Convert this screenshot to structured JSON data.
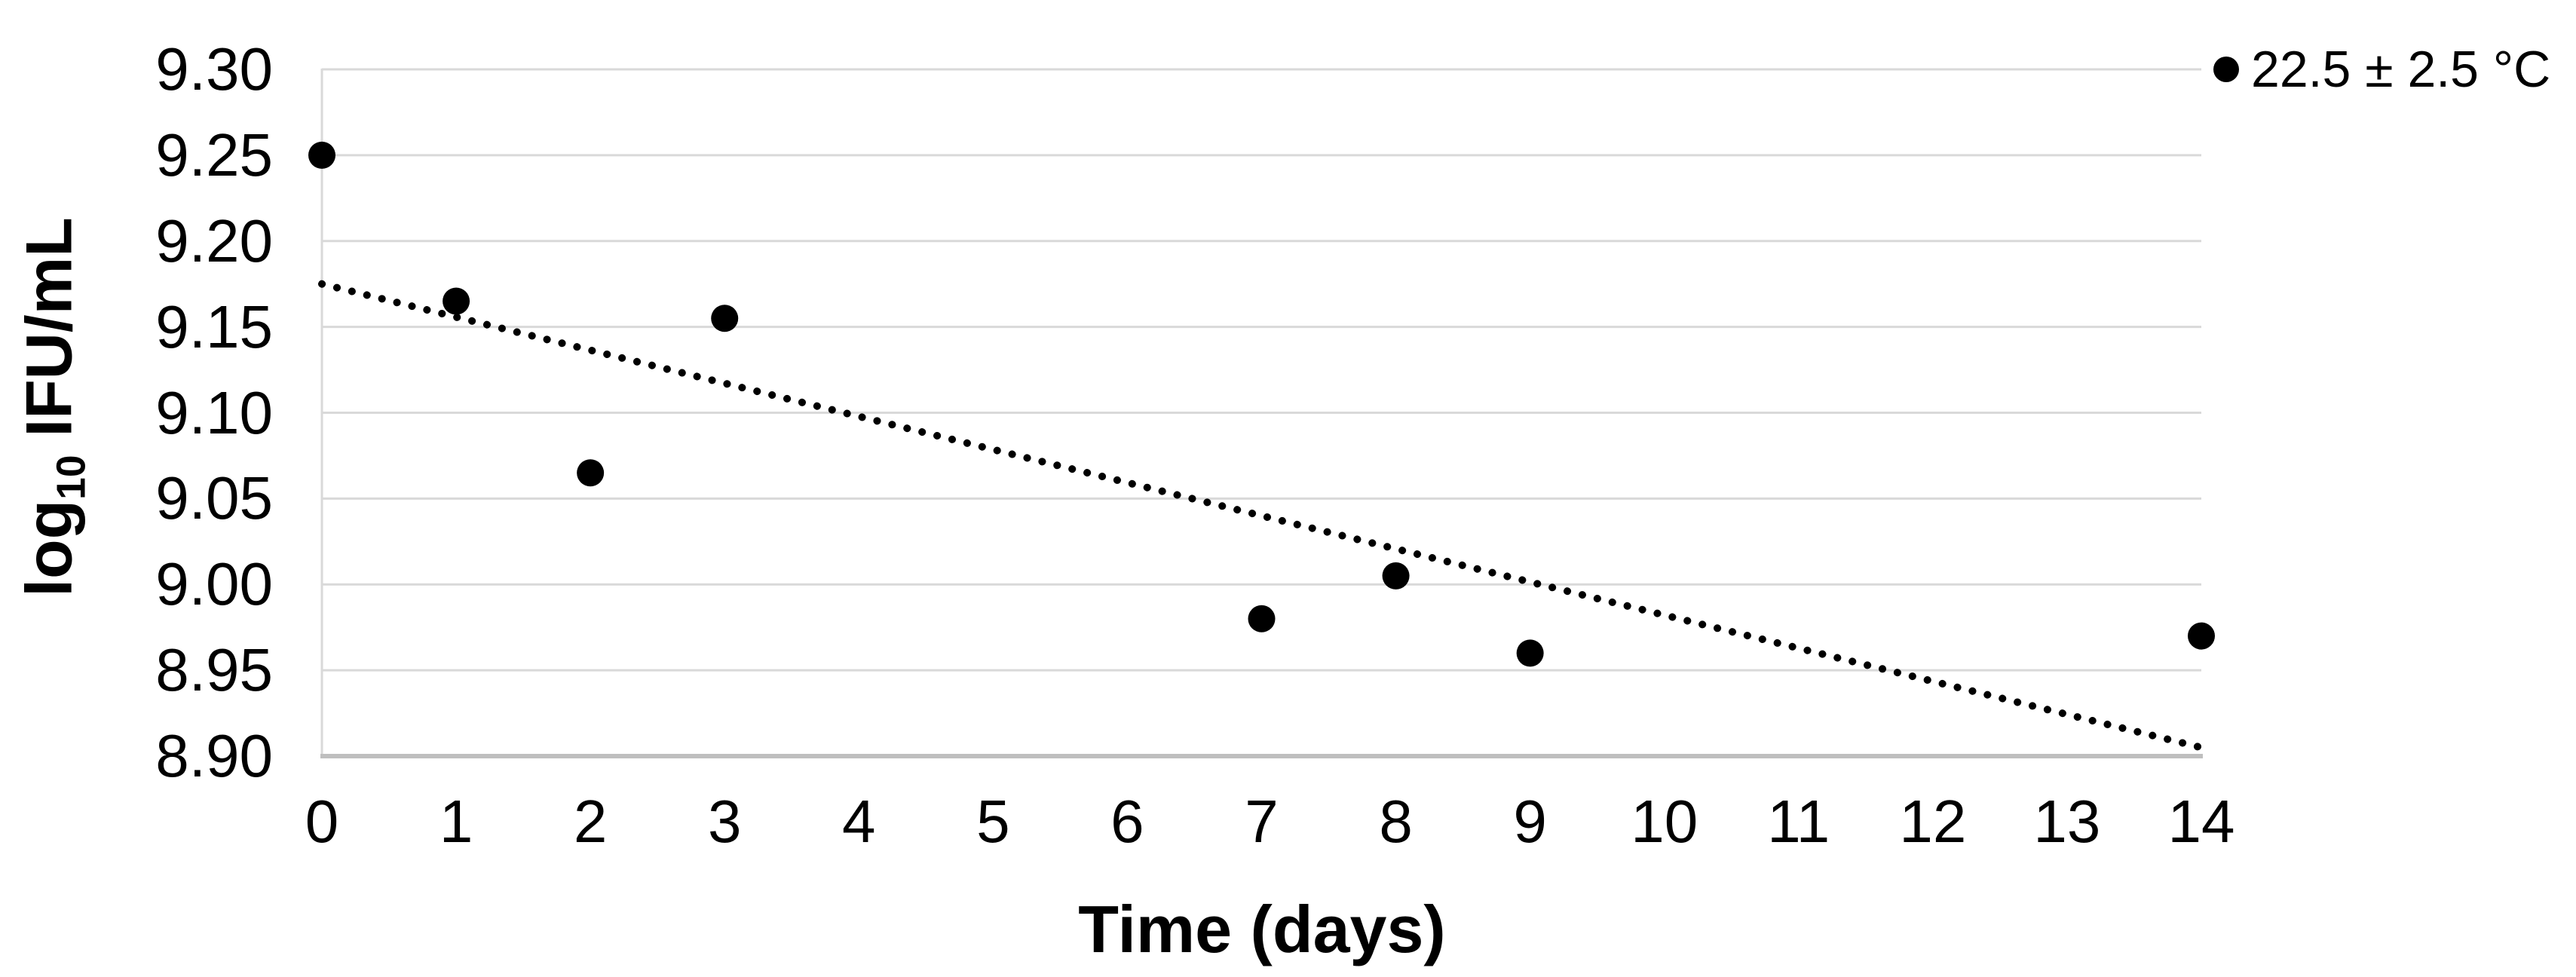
{
  "chart": {
    "legend": {
      "label": "22.5 ± 2.5 °C"
    },
    "x_axis": {
      "title": "Time (days)",
      "tick_labels": [
        "0",
        "1",
        "2",
        "3",
        "4",
        "5",
        "6",
        "7",
        "8",
        "9",
        "10",
        "11",
        "12",
        "13",
        "14"
      ]
    },
    "y_axis": {
      "title_prefix": "log",
      "title_subscript": "10",
      "title_suffix": " IFU/mL",
      "tick_labels": [
        "9.30",
        "9.25",
        "9.20",
        "9.15",
        "9.10",
        "9.05",
        "9.00",
        "8.95",
        "8.90"
      ]
    }
  },
  "colors": {
    "background": "#FFFFFF",
    "text": "#000000",
    "gridline": "#D9D9D9",
    "axis_line": "#BFBFBF",
    "marker": "#000000",
    "trendline": "#000000"
  },
  "chart_data": {
    "type": "scatter",
    "title": "",
    "xlabel": "Time (days)",
    "ylabel": "log10 IFU/mL",
    "xlim": [
      0,
      14
    ],
    "ylim": [
      8.9,
      9.3
    ],
    "x_ticks": [
      0,
      1,
      2,
      3,
      4,
      5,
      6,
      7,
      8,
      9,
      10,
      11,
      12,
      13,
      14
    ],
    "y_ticks": [
      9.3,
      9.25,
      9.2,
      9.15,
      9.1,
      9.05,
      9.0,
      8.95,
      8.9
    ],
    "grid": "horizontal",
    "legend_position": "top-right",
    "series": [
      {
        "name": "22.5 ± 2.5 °C",
        "marker": "filled-circle",
        "color": "#000000",
        "points": [
          [
            0,
            9.25
          ],
          [
            1,
            9.165
          ],
          [
            2,
            9.065
          ],
          [
            3,
            9.155
          ],
          [
            7,
            8.98
          ],
          [
            8,
            9.005
          ],
          [
            9,
            8.96
          ],
          [
            14,
            8.97
          ]
        ]
      }
    ],
    "trendline": {
      "type": "linear",
      "style": "dotted",
      "color": "#000000",
      "start": [
        0,
        9.175
      ],
      "end": [
        14,
        8.905
      ]
    }
  }
}
